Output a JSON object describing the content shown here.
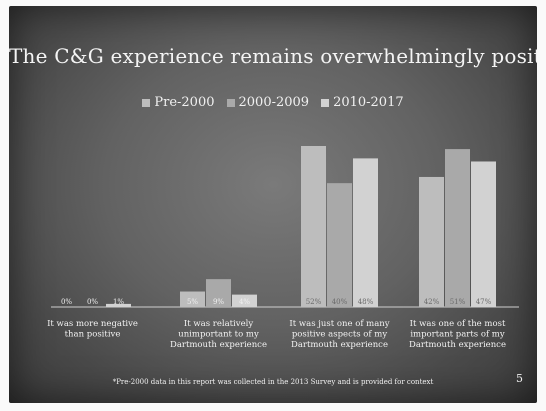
{
  "slide": {
    "title": "The C&G experience remains overwhelmingly positive",
    "footnote": "*Pre-2000 data in this report was collected in the 2013 Survey and is provided for context",
    "page_number": "5"
  },
  "colors": {
    "background": "#5e5e5e",
    "text": "#f2f2f2",
    "series": [
      "#bdbdbd",
      "#a9a9a9",
      "#d2d2d2"
    ]
  },
  "chart_data": {
    "type": "bar",
    "title": "The C&G experience remains overwhelmingly positive",
    "xlabel": "",
    "ylabel": "",
    "ylim": [
      0,
      52
    ],
    "grid": false,
    "legend_position": "top",
    "categories": [
      [
        "It was more negative",
        "than positive"
      ],
      [
        "It was relatively",
        "unimportant to my",
        "Dartmouth experience"
      ],
      [
        "It was just one of many",
        "positive aspects of my",
        "Dartmouth experience"
      ],
      [
        "It was one of the most",
        "important parts of my",
        "Dartmouth experience"
      ]
    ],
    "series": [
      {
        "name": "Pre-2000",
        "values": [
          0,
          5,
          52,
          42
        ],
        "labels": [
          "0%",
          "5%",
          "52%",
          "42%"
        ]
      },
      {
        "name": "2000-2009",
        "values": [
          0,
          9,
          40,
          51
        ],
        "labels": [
          "0%",
          "9%",
          "40%",
          "51%"
        ]
      },
      {
        "name": "2010-2017",
        "values": [
          1,
          4,
          48,
          47
        ],
        "labels": [
          "1%",
          "4%",
          "48%",
          "47%"
        ]
      }
    ]
  }
}
